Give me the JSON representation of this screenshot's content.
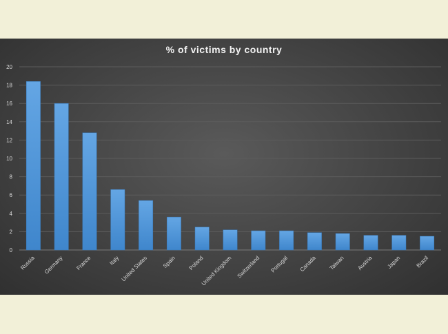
{
  "chart_data": {
    "type": "bar",
    "title": "% of victims by country",
    "categories": [
      "Russia",
      "Germany",
      "France",
      "Italy",
      "United States",
      "Spain",
      "Poland",
      "United Kingdom",
      "Switzerland",
      "Portugal",
      "Canada",
      "Taiwan",
      "Austria",
      "Japan",
      "Brazil"
    ],
    "values": [
      18.4,
      16.0,
      12.8,
      6.6,
      5.4,
      3.6,
      2.5,
      2.2,
      2.1,
      2.1,
      1.9,
      1.8,
      1.6,
      1.6,
      1.5
    ],
    "ylim": [
      0,
      20
    ],
    "yticks": [
      0,
      2,
      4,
      6,
      8,
      10,
      12,
      14,
      16,
      18,
      20
    ],
    "xlabel": "",
    "ylabel": "",
    "grid": true,
    "legend": "none",
    "bar_color": "#5b9bd5",
    "background_color": "#404040",
    "page_background": "#f2f0d8"
  }
}
